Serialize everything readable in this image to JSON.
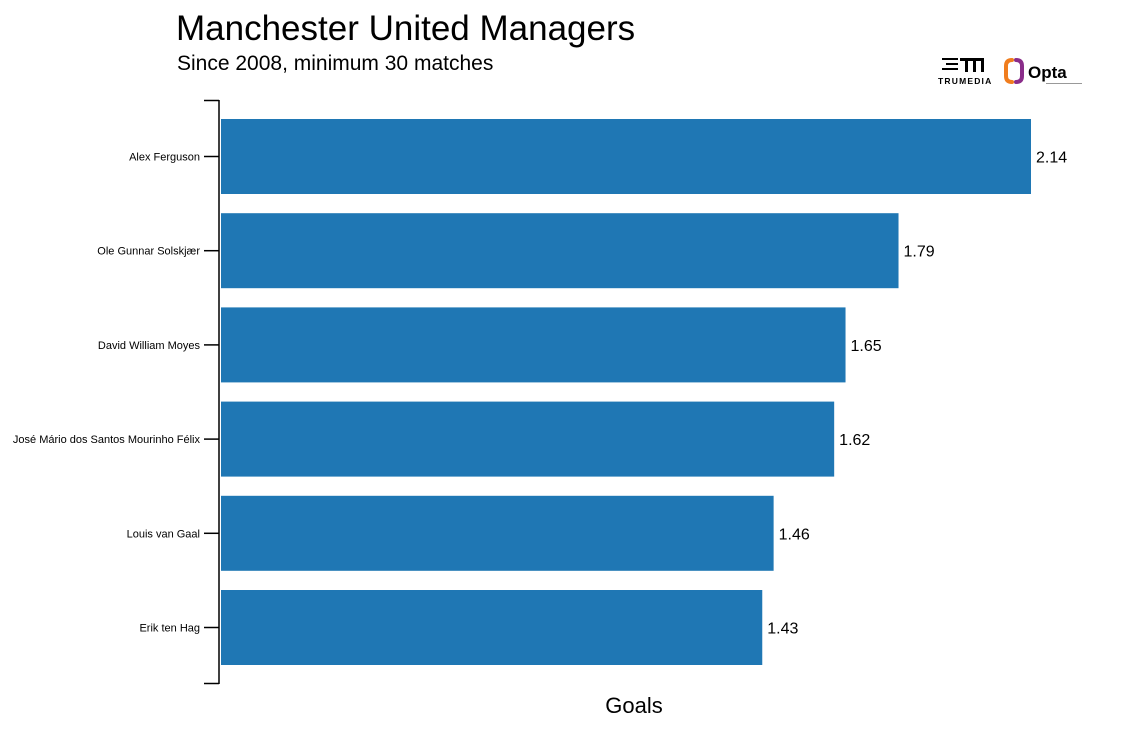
{
  "header": {
    "title": "Manchester United Managers",
    "subtitle": "Since 2008, minimum 30 matches"
  },
  "logos": {
    "trumedia": "TRUMEDIA",
    "opta": "Opta"
  },
  "colors": {
    "bar": "#1f77b4",
    "axis": "#000000",
    "opta_orange": "#f07d1e",
    "opta_purple": "#8a2d8a"
  },
  "chart_data": {
    "type": "bar",
    "orientation": "horizontal",
    "categories": [
      "Alex Ferguson",
      "Ole Gunnar Solskjær",
      "David William Moyes",
      "José Mário dos Santos Mourinho Félix",
      "Louis van Gaal",
      "Erik ten Hag"
    ],
    "values": [
      2.14,
      1.79,
      1.65,
      1.62,
      1.46,
      1.43
    ],
    "data_labels": [
      "2.14",
      "1.79",
      "1.65",
      "1.62",
      "1.46",
      "1.43"
    ],
    "title": "Manchester United Managers",
    "subtitle": "Since 2008, minimum 30 matches",
    "xlabel": "Goals",
    "ylabel": "",
    "xlim": [
      0,
      2.14
    ],
    "grid": false,
    "legend": "none"
  }
}
